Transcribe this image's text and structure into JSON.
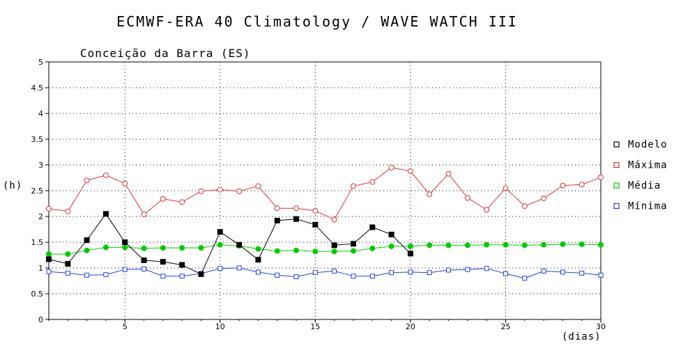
{
  "chart_data": {
    "type": "line",
    "title": "ECMWF-ERA 40 Climatology / WAVE WATCH III",
    "subtitle": "Conceição da Barra (ES)",
    "xlabel": "(dias)",
    "ylabel": "(h)",
    "xlim": [
      1,
      30
    ],
    "ylim": [
      0,
      5
    ],
    "xticks": [
      "5",
      "10",
      "15",
      "20",
      "25",
      "30"
    ],
    "yticks": [
      "0",
      "0.5",
      "1",
      "1.5",
      "2",
      "2.5",
      "3",
      "3.5",
      "4",
      "4.5",
      "5"
    ],
    "grid": true,
    "legend_position": "right",
    "series": [
      {
        "name": "Modelo",
        "color": "#000000",
        "marker": "filled-square",
        "x": [
          1,
          2,
          3,
          4,
          5,
          6,
          7,
          8,
          9,
          10,
          11,
          12,
          13,
          14,
          15,
          16,
          17,
          18,
          19,
          20
        ],
        "values": [
          1.17,
          1.08,
          1.54,
          2.05,
          1.5,
          1.15,
          1.12,
          1.06,
          0.88,
          1.7,
          1.45,
          1.16,
          1.92,
          1.95,
          1.84,
          1.44,
          1.47,
          1.79,
          1.65,
          1.28
        ]
      },
      {
        "name": "Máxima",
        "color": "#e03030",
        "marker": "open-circle",
        "x": [
          1,
          2,
          3,
          4,
          5,
          6,
          7,
          8,
          9,
          10,
          11,
          12,
          13,
          14,
          15,
          16,
          17,
          18,
          19,
          20,
          21,
          22,
          23,
          24,
          25,
          26,
          27,
          28,
          29,
          30
        ],
        "values": [
          2.15,
          2.1,
          2.7,
          2.8,
          2.64,
          2.04,
          2.34,
          2.28,
          2.49,
          2.52,
          2.49,
          2.59,
          2.16,
          2.16,
          2.11,
          1.94,
          2.59,
          2.67,
          2.95,
          2.88,
          2.43,
          2.83,
          2.36,
          2.13,
          2.55,
          2.2,
          2.35,
          2.6,
          2.62,
          2.76
        ]
      },
      {
        "name": "Média",
        "color": "#00cc00",
        "marker": "filled-circle",
        "x": [
          1,
          2,
          3,
          4,
          5,
          6,
          7,
          8,
          9,
          10,
          11,
          12,
          13,
          14,
          15,
          16,
          17,
          18,
          19,
          20,
          21,
          22,
          23,
          24,
          25,
          26,
          27,
          28,
          29,
          30
        ],
        "values": [
          1.27,
          1.27,
          1.34,
          1.4,
          1.4,
          1.38,
          1.39,
          1.39,
          1.39,
          1.45,
          1.43,
          1.37,
          1.33,
          1.34,
          1.32,
          1.32,
          1.33,
          1.38,
          1.42,
          1.42,
          1.44,
          1.44,
          1.44,
          1.45,
          1.45,
          1.44,
          1.45,
          1.46,
          1.46,
          1.45
        ]
      },
      {
        "name": "Mínima",
        "color": "#2040e0",
        "marker": "open-square",
        "x": [
          1,
          2,
          3,
          4,
          5,
          6,
          7,
          8,
          9,
          10,
          11,
          12,
          13,
          14,
          15,
          16,
          17,
          18,
          19,
          20,
          21,
          22,
          23,
          24,
          25,
          26,
          27,
          28,
          29,
          30
        ],
        "values": [
          0.93,
          0.9,
          0.86,
          0.87,
          0.97,
          0.98,
          0.84,
          0.84,
          0.89,
          0.99,
          1.0,
          0.92,
          0.86,
          0.83,
          0.91,
          0.94,
          0.84,
          0.84,
          0.91,
          0.92,
          0.91,
          0.96,
          0.97,
          0.99,
          0.89,
          0.8,
          0.94,
          0.92,
          0.9,
          0.86
        ]
      }
    ]
  }
}
